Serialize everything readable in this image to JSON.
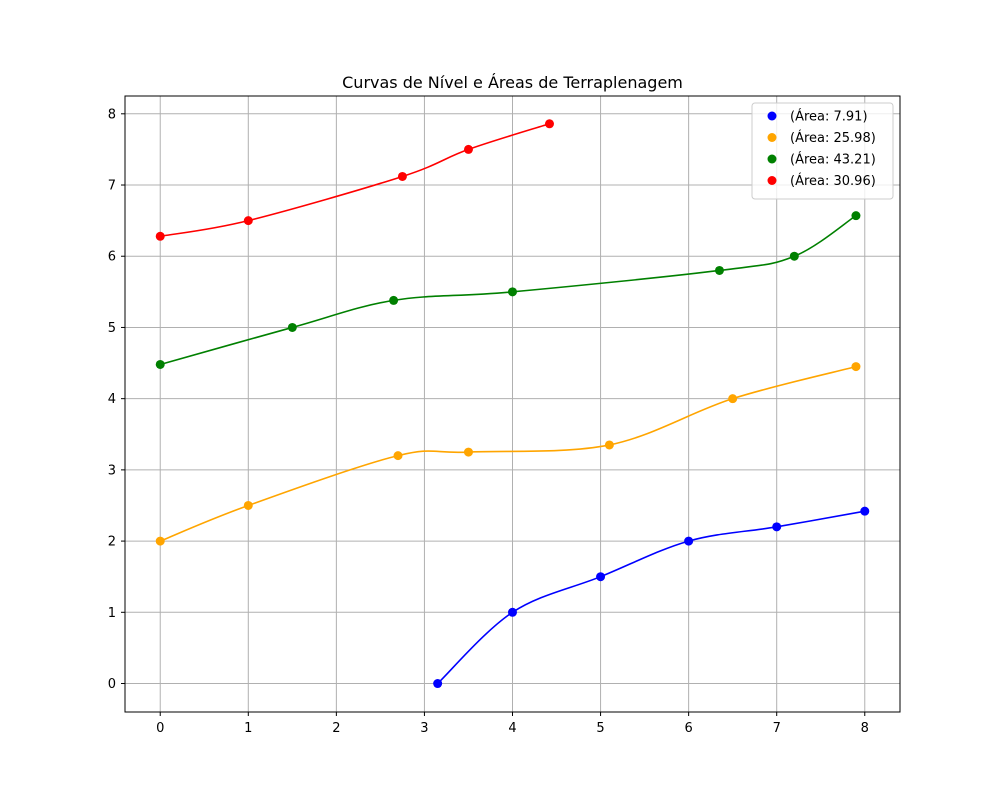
{
  "chart_data": {
    "type": "line",
    "title": "Curvas de Nível e Áreas de Terraplenagem",
    "xlabel": "",
    "ylabel": "",
    "xlim": [
      -0.4,
      8.4
    ],
    "ylim": [
      -0.4,
      8.25
    ],
    "xticks": [
      0,
      1,
      2,
      3,
      4,
      5,
      6,
      7,
      8
    ],
    "yticks": [
      0,
      1,
      2,
      3,
      4,
      5,
      6,
      7,
      8
    ],
    "grid": true,
    "legend_position": "upper right",
    "series": [
      {
        "name": " (Área: 7.91)",
        "color": "#0000ff",
        "points": [
          [
            3.15,
            0.0
          ],
          [
            4.0,
            1.0
          ],
          [
            5.0,
            1.5
          ],
          [
            6.0,
            2.0
          ],
          [
            7.0,
            2.2
          ],
          [
            8.0,
            2.42
          ]
        ]
      },
      {
        "name": " (Área: 25.98)",
        "color": "#ffa500",
        "points": [
          [
            0.0,
            2.0
          ],
          [
            1.0,
            2.5
          ],
          [
            2.7,
            3.2
          ],
          [
            3.5,
            3.25
          ],
          [
            5.1,
            3.35
          ],
          [
            6.5,
            4.0
          ],
          [
            7.9,
            4.45
          ]
        ]
      },
      {
        "name": " (Área: 43.21)",
        "color": "#008000",
        "points": [
          [
            0.0,
            4.48
          ],
          [
            1.5,
            5.0
          ],
          [
            2.65,
            5.38
          ],
          [
            4.0,
            5.5
          ],
          [
            6.35,
            5.8
          ],
          [
            7.2,
            6.0
          ],
          [
            7.9,
            6.57
          ]
        ]
      },
      {
        "name": " (Área: 30.96)",
        "color": "#ff0000",
        "points": [
          [
            0.0,
            6.28
          ],
          [
            1.0,
            6.5
          ],
          [
            2.75,
            7.12
          ],
          [
            3.5,
            7.5
          ],
          [
            4.42,
            7.86
          ]
        ]
      }
    ]
  }
}
